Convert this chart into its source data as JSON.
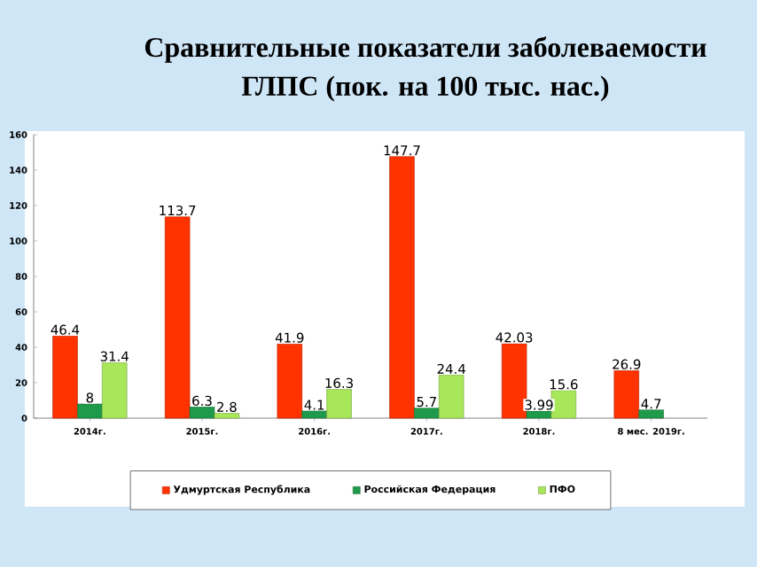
{
  "chart_data": {
    "type": "bar",
    "title": "Сравнительные показатели заболеваемости",
    "subtitle": "ГЛПС  (пок. на 100 тыс. нас.)",
    "categories": [
      "2014г.",
      "2015г.",
      "2016г.",
      "2017г.",
      "2018г.",
      "8 мес. 2019г."
    ],
    "series": [
      {
        "name": "Удмуртская Республика",
        "color": "#ff3300",
        "values": [
          46.4,
          113.7,
          41.9,
          147.7,
          42.03,
          26.9
        ],
        "value_labels": [
          "46.4",
          "113.7",
          "41.9",
          "147.7",
          "42.03",
          "26.9"
        ]
      },
      {
        "name": "Российская Федерация",
        "color": "#1e9a4a",
        "values": [
          8,
          6.3,
          4.1,
          5.7,
          3.99,
          4.7
        ],
        "value_labels": [
          "8",
          "6.3",
          "4.1",
          "5.7",
          "3.99",
          "4.7"
        ]
      },
      {
        "name": "ПФО",
        "color": "#a8e65a",
        "values": [
          31.4,
          2.8,
          16.3,
          24.4,
          15.6,
          null
        ],
        "value_labels": [
          "31.4",
          "2.8",
          "16.3",
          "24.4",
          "15.6",
          null
        ]
      }
    ],
    "ylim": [
      0,
      160
    ],
    "yticks": [
      0,
      20,
      40,
      60,
      80,
      100,
      120,
      140,
      160
    ],
    "grid": false,
    "legend": "bottom"
  }
}
